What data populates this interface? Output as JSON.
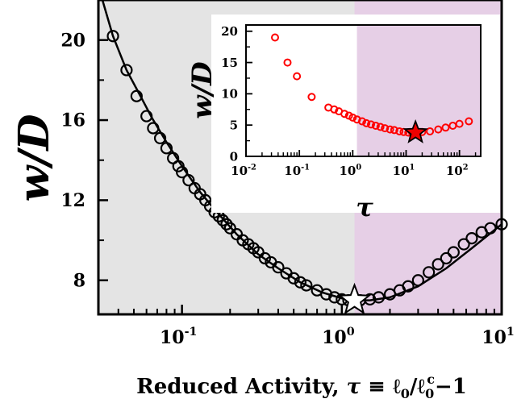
{
  "chart_data": [
    {
      "type": "scatter",
      "title": "",
      "xlabel": "Reduced Activity, τ ≡ ℓ0/ℓ0c − 1",
      "xlabel_parts": {
        "prefix": "Reduced Activity, ",
        "tau": "τ",
        "equiv": " ≡ ℓ",
        "sub0": "0",
        "slash": "/ℓ",
        "sub0b": "0",
        "supc": "c",
        "minus1": "−1"
      },
      "ylabel": "w/D",
      "x_scale": "log",
      "xlim": [
        0.03,
        10
      ],
      "ylim": [
        6.3,
        22
      ],
      "xticks": [
        {
          "value": 0.1,
          "base": "10",
          "exp": "-1"
        },
        {
          "value": 1,
          "base": "10",
          "exp": "0"
        },
        {
          "value": 10,
          "base": "10",
          "exp": "1"
        }
      ],
      "yticks": [
        {
          "value": 8,
          "label": "8"
        },
        {
          "value": 12,
          "label": "12"
        },
        {
          "value": 16,
          "label": "16"
        },
        {
          "value": 20,
          "label": "20"
        }
      ],
      "regions": [
        {
          "x": [
            0.03,
            1.2
          ],
          "color": "#e4e4e4"
        },
        {
          "x": [
            1.2,
            10
          ],
          "color": "#e6cfe6"
        }
      ],
      "curve_fit": {
        "x": [
          0.031,
          0.037,
          0.045,
          0.055,
          0.065,
          0.08,
          0.1,
          0.13,
          0.17,
          0.22,
          0.3,
          0.4,
          0.55,
          0.75,
          1.0,
          1.2,
          1.5,
          2.0,
          3.0,
          4.5,
          6.5,
          10.0
        ],
        "y": [
          22.3,
          20.2,
          18.5,
          17.2,
          16.1,
          14.9,
          13.7,
          12.4,
          11.3,
          10.3,
          9.3,
          8.6,
          7.9,
          7.4,
          7.1,
          7.0,
          7.0,
          7.15,
          7.7,
          8.6,
          9.6,
          10.8
        ]
      },
      "series": [
        {
          "marker": "open-circle",
          "color": "#000000",
          "x": [
            0.037,
            0.045,
            0.052,
            0.06,
            0.066,
            0.073,
            0.08,
            0.088,
            0.095,
            0.1,
            0.11,
            0.12,
            0.13,
            0.14,
            0.15,
            0.16,
            0.17,
            0.18,
            0.19,
            0.2,
            0.22,
            0.24,
            0.26,
            0.28,
            0.3,
            0.33,
            0.36,
            0.4,
            0.45,
            0.5,
            0.55,
            0.6,
            0.7,
            0.8,
            0.9,
            1.0,
            1.1,
            1.3,
            1.5,
            1.7,
            2.0,
            2.3,
            2.6,
            3.0,
            3.5,
            4.0,
            4.5,
            5.0,
            5.8,
            6.5,
            7.5,
            8.5,
            10.0
          ],
          "y": [
            20.2,
            18.5,
            17.2,
            16.2,
            15.6,
            15.1,
            14.6,
            14.1,
            13.7,
            13.4,
            13.0,
            12.6,
            12.3,
            12.0,
            11.7,
            11.4,
            11.2,
            11.0,
            10.8,
            10.6,
            10.3,
            10.0,
            9.8,
            9.6,
            9.4,
            9.1,
            8.9,
            8.65,
            8.35,
            8.1,
            7.9,
            7.75,
            7.5,
            7.3,
            7.15,
            7.05,
            7.0,
            7.0,
            7.05,
            7.15,
            7.3,
            7.5,
            7.7,
            8.0,
            8.4,
            8.8,
            9.1,
            9.4,
            9.8,
            10.1,
            10.4,
            10.6,
            10.8
          ]
        }
      ],
      "star": {
        "x": 1.2,
        "y": 7.0,
        "fill": "#ffffff",
        "stroke": "#000000"
      }
    },
    {
      "type": "scatter",
      "title": "",
      "xlabel": "τ",
      "ylabel": "w/D",
      "x_scale": "log",
      "xlim": [
        0.01,
        250
      ],
      "ylim": [
        0,
        21
      ],
      "xticks": [
        {
          "value": 0.01,
          "base": "10",
          "exp": "-2"
        },
        {
          "value": 0.1,
          "base": "10",
          "exp": "-1"
        },
        {
          "value": 1,
          "base": "10",
          "exp": "0"
        },
        {
          "value": 10,
          "base": "10",
          "exp": "1"
        },
        {
          "value": 100,
          "base": "10",
          "exp": "2"
        }
      ],
      "yticks": [
        {
          "value": 0,
          "label": "0"
        },
        {
          "value": 5,
          "label": "5"
        },
        {
          "value": 10,
          "label": "10"
        },
        {
          "value": 15,
          "label": "15"
        },
        {
          "value": 20,
          "label": "20"
        }
      ],
      "regions": [
        {
          "x": [
            1.2,
            250
          ],
          "color": "#e6cfe6"
        }
      ],
      "series": [
        {
          "marker": "open-circle",
          "color": "#ff0000",
          "x": [
            0.035,
            0.06,
            0.09,
            0.17,
            0.35,
            0.45,
            0.55,
            0.7,
            0.85,
            1.0,
            1.2,
            1.5,
            1.8,
            2.2,
            2.7,
            3.3,
            4.0,
            5.0,
            6.0,
            7.5,
            9.0,
            11,
            13,
            16,
            20,
            28,
            40,
            55,
            75,
            100,
            150
          ],
          "y": [
            19.0,
            15.0,
            12.8,
            9.5,
            7.8,
            7.5,
            7.2,
            6.8,
            6.5,
            6.2,
            5.9,
            5.6,
            5.3,
            5.1,
            4.9,
            4.7,
            4.5,
            4.3,
            4.2,
            4.0,
            3.9,
            3.8,
            3.8,
            3.8,
            3.9,
            4.0,
            4.3,
            4.6,
            4.9,
            5.2,
            5.6
          ]
        }
      ],
      "star": {
        "x": 15,
        "y": 3.8,
        "fill": "#ee0000",
        "stroke": "#000000"
      }
    }
  ]
}
